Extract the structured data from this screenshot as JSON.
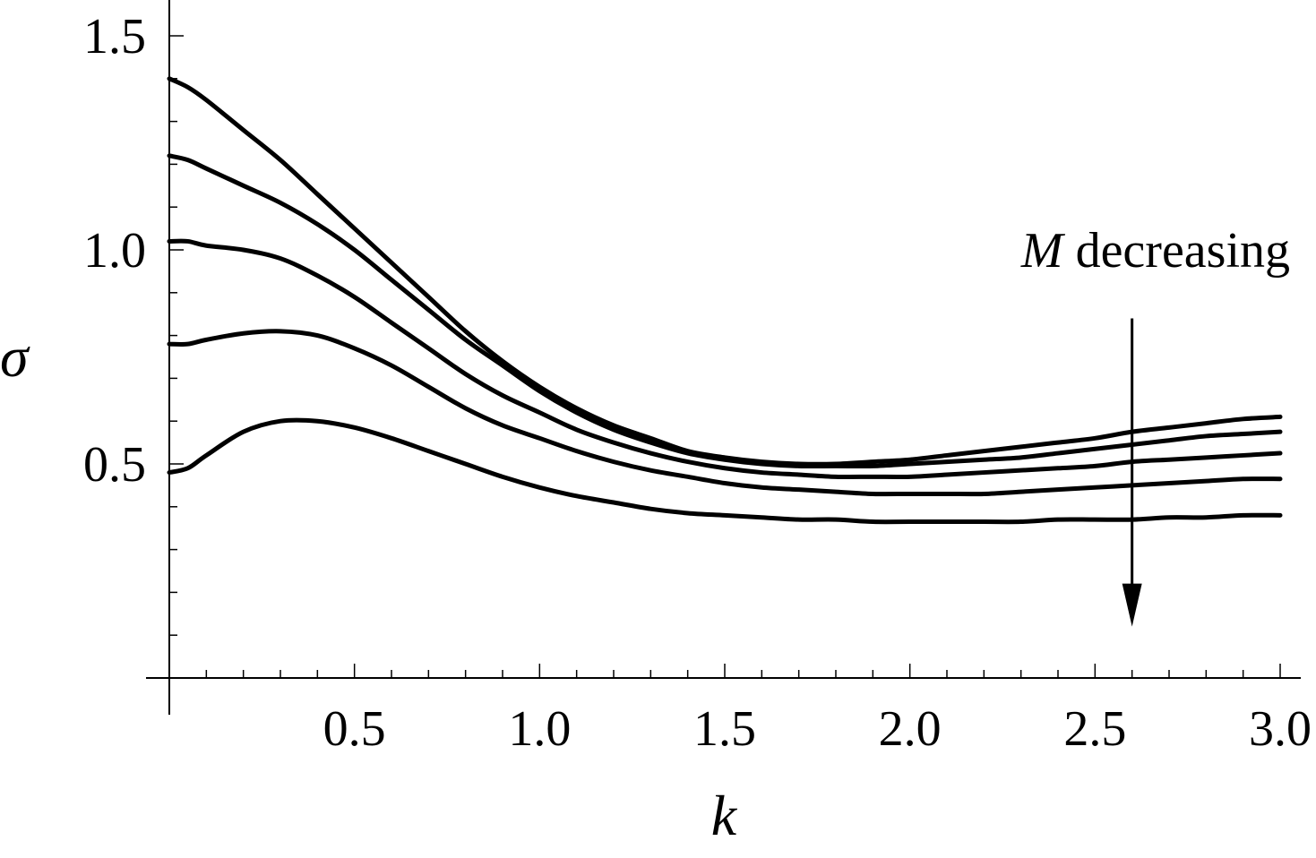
{
  "chart_data": {
    "type": "line",
    "xlabel": "k",
    "ylabel": "σ",
    "xlim": [
      0,
      3.0
    ],
    "ylim": [
      0,
      1.5
    ],
    "x_ticks": [
      "0.5",
      "1.0",
      "1.5",
      "2.0",
      "2.5",
      "3.0"
    ],
    "y_ticks": [
      "0.5",
      "1.0",
      "1.5"
    ],
    "grid": false,
    "series": [
      {
        "x": [
          0,
          0.05,
          0.1,
          0.2,
          0.3,
          0.4,
          0.5,
          0.6,
          0.7,
          0.8,
          0.9,
          1.0,
          1.1,
          1.2,
          1.3,
          1.4,
          1.5,
          1.6,
          1.7,
          1.8,
          1.9,
          2.0,
          2.1,
          2.2,
          2.3,
          2.4,
          2.5,
          2.6,
          2.7,
          2.8,
          2.9,
          3.0
        ],
        "values": [
          1.4,
          1.38,
          1.35,
          1.28,
          1.21,
          1.13,
          1.05,
          0.97,
          0.89,
          0.81,
          0.74,
          0.68,
          0.63,
          0.59,
          0.56,
          0.53,
          0.515,
          0.505,
          0.5,
          0.5,
          0.505,
          0.51,
          0.52,
          0.53,
          0.54,
          0.55,
          0.56,
          0.575,
          0.585,
          0.595,
          0.605,
          0.61
        ]
      },
      {
        "x": [
          0,
          0.05,
          0.1,
          0.2,
          0.3,
          0.4,
          0.5,
          0.6,
          0.7,
          0.8,
          0.9,
          1.0,
          1.1,
          1.2,
          1.3,
          1.4,
          1.5,
          1.6,
          1.7,
          1.8,
          1.9,
          2.0,
          2.1,
          2.2,
          2.3,
          2.4,
          2.5,
          2.6,
          2.7,
          2.8,
          2.9,
          3.0
        ],
        "values": [
          1.22,
          1.21,
          1.19,
          1.15,
          1.11,
          1.06,
          1.0,
          0.93,
          0.86,
          0.79,
          0.73,
          0.67,
          0.62,
          0.58,
          0.55,
          0.525,
          0.51,
          0.5,
          0.495,
          0.495,
          0.495,
          0.5,
          0.505,
          0.51,
          0.515,
          0.525,
          0.535,
          0.545,
          0.555,
          0.565,
          0.57,
          0.575
        ]
      },
      {
        "x": [
          0,
          0.05,
          0.1,
          0.2,
          0.3,
          0.4,
          0.5,
          0.6,
          0.7,
          0.8,
          0.9,
          1.0,
          1.1,
          1.2,
          1.3,
          1.4,
          1.5,
          1.6,
          1.7,
          1.8,
          1.9,
          2.0,
          2.1,
          2.2,
          2.3,
          2.4,
          2.5,
          2.6,
          2.7,
          2.8,
          2.9,
          3.0
        ],
        "values": [
          1.02,
          1.02,
          1.01,
          1.0,
          0.98,
          0.94,
          0.89,
          0.83,
          0.77,
          0.71,
          0.66,
          0.62,
          0.58,
          0.55,
          0.525,
          0.505,
          0.49,
          0.48,
          0.475,
          0.47,
          0.47,
          0.47,
          0.475,
          0.48,
          0.485,
          0.49,
          0.495,
          0.505,
          0.51,
          0.515,
          0.52,
          0.525
        ]
      },
      {
        "x": [
          0,
          0.05,
          0.1,
          0.2,
          0.3,
          0.4,
          0.5,
          0.6,
          0.7,
          0.8,
          0.9,
          1.0,
          1.1,
          1.2,
          1.3,
          1.4,
          1.5,
          1.6,
          1.7,
          1.8,
          1.9,
          2.0,
          2.1,
          2.2,
          2.3,
          2.4,
          2.5,
          2.6,
          2.7,
          2.8,
          2.9,
          3.0
        ],
        "values": [
          0.78,
          0.78,
          0.79,
          0.805,
          0.81,
          0.8,
          0.77,
          0.73,
          0.68,
          0.63,
          0.59,
          0.56,
          0.53,
          0.505,
          0.485,
          0.47,
          0.455,
          0.445,
          0.44,
          0.435,
          0.43,
          0.43,
          0.43,
          0.43,
          0.435,
          0.44,
          0.445,
          0.45,
          0.455,
          0.46,
          0.465,
          0.465
        ]
      },
      {
        "x": [
          0,
          0.05,
          0.1,
          0.2,
          0.3,
          0.4,
          0.5,
          0.6,
          0.7,
          0.8,
          0.9,
          1.0,
          1.1,
          1.2,
          1.3,
          1.4,
          1.5,
          1.6,
          1.7,
          1.8,
          1.9,
          2.0,
          2.1,
          2.2,
          2.3,
          2.4,
          2.5,
          2.6,
          2.7,
          2.8,
          2.9,
          3.0
        ],
        "values": [
          0.48,
          0.49,
          0.52,
          0.575,
          0.6,
          0.6,
          0.585,
          0.56,
          0.53,
          0.5,
          0.47,
          0.445,
          0.425,
          0.41,
          0.395,
          0.385,
          0.38,
          0.375,
          0.37,
          0.37,
          0.365,
          0.365,
          0.365,
          0.365,
          0.365,
          0.37,
          0.37,
          0.37,
          0.375,
          0.375,
          0.38,
          0.38
        ]
      }
    ],
    "annotations": [
      {
        "symbol": "M",
        "text": " decreasing",
        "arrow_x": 2.6,
        "arrow_from_y": 0.84,
        "arrow_to_y": 0.12
      }
    ]
  }
}
